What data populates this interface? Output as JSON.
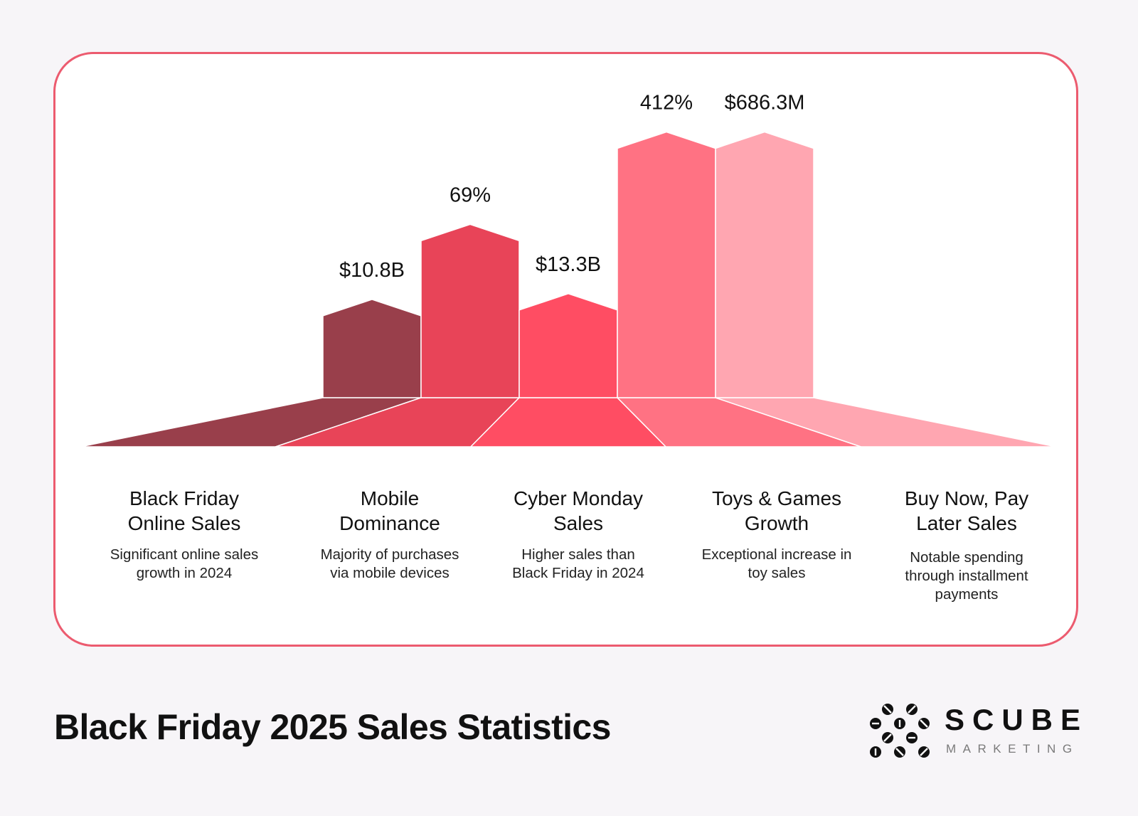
{
  "title": "Black Friday 2025 Sales Statistics",
  "logo": {
    "name": "SCUBE",
    "subtitle": "MARKETING",
    "icon": "scube-dots-icon"
  },
  "colors": {
    "accent": "#ec5b6f",
    "series": [
      "#993f4b",
      "#e84458",
      "#ff4d63",
      "#ff7283",
      "#ffa6b1"
    ],
    "background": "#f7f5f8",
    "card": "#ffffff"
  },
  "chart_data": {
    "type": "bar",
    "categories": [
      "Black Friday Online Sales",
      "Mobile Dominance",
      "Cyber Monday Sales",
      "Toys & Games Growth",
      "Buy Now, Pay Later Sales"
    ],
    "value_labels": [
      "$10.8B",
      "69%",
      "$13.3B",
      "412%",
      "$686.3M"
    ],
    "relative_heights": [
      0.34,
      0.6,
      0.36,
      0.92,
      0.92
    ],
    "grid": false,
    "legend": "none"
  },
  "items": [
    {
      "title": "Black Friday\nOnline Sales",
      "description": "Significant online sales\ngrowth in 2024"
    },
    {
      "title": "Mobile\nDominance",
      "description": "Majority of purchases\nvia mobile devices"
    },
    {
      "title": "Cyber Monday\nSales",
      "description": "Higher sales than\nBlack Friday in 2024"
    },
    {
      "title": "Toys & Games\nGrowth",
      "description": "Exceptional increase in\ntoy sales"
    },
    {
      "title": "Buy Now, Pay\nLater Sales",
      "description": "Notable spending\nthrough installment\npayments"
    }
  ]
}
